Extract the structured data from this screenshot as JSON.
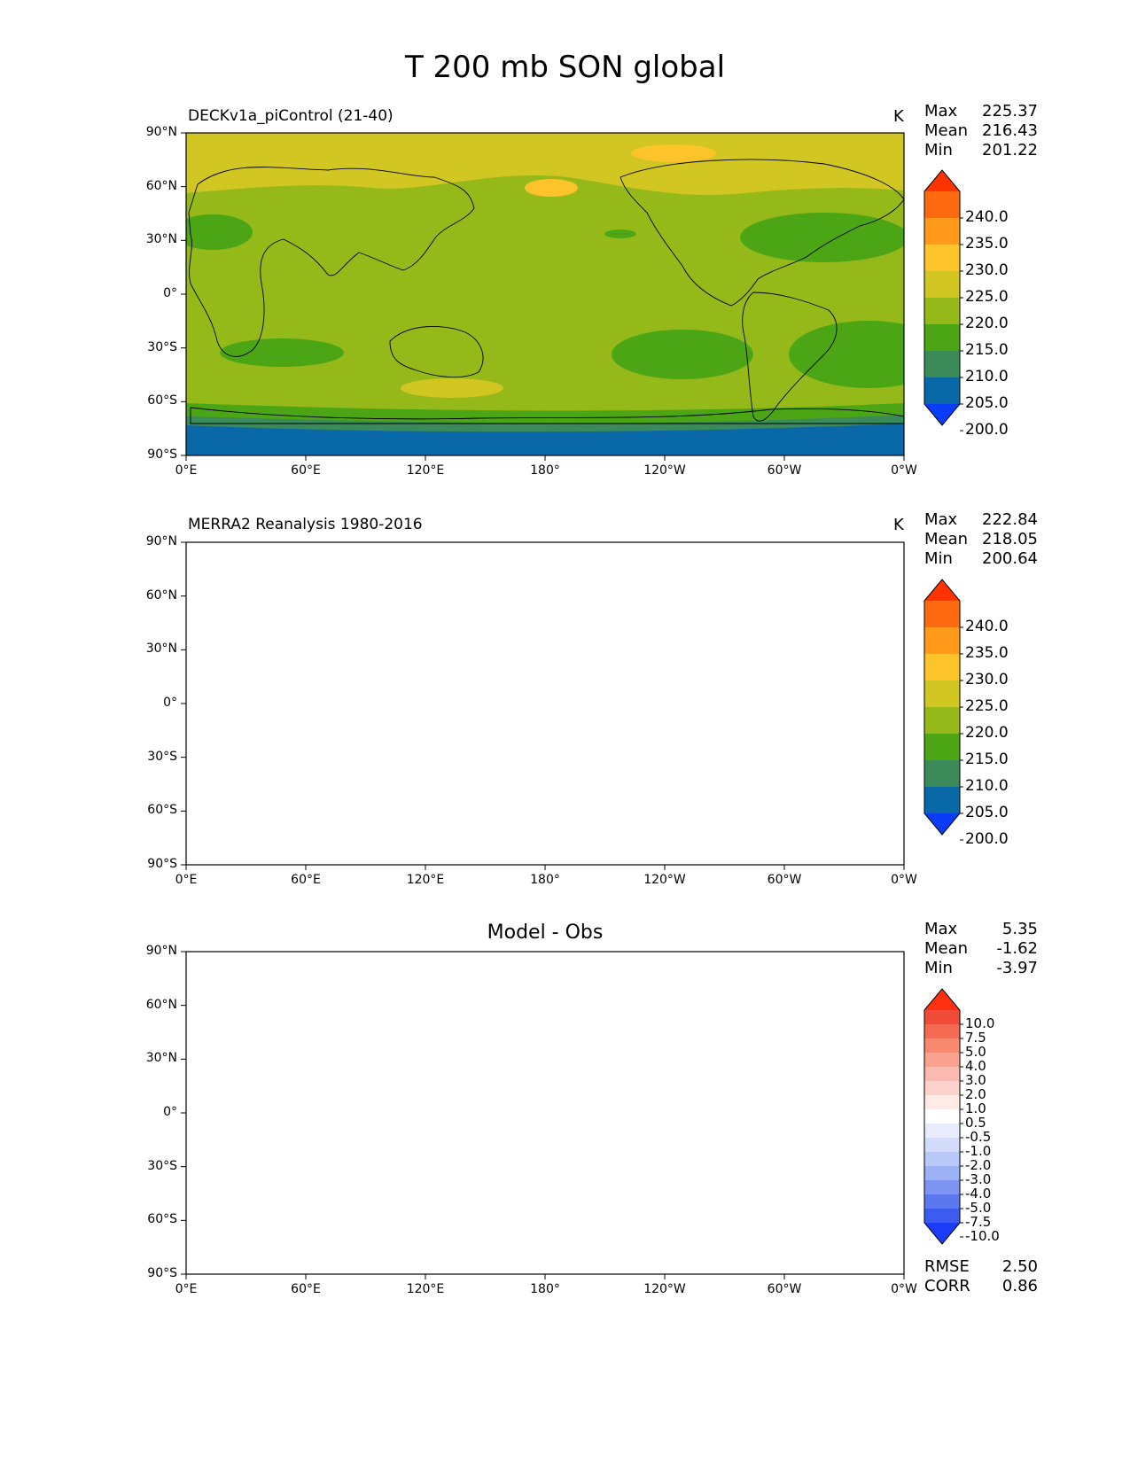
{
  "figure": {
    "title": "T 200 mb SON global",
    "lon_ticks": [
      "0°E",
      "60°E",
      "120°E",
      "180°",
      "120°W",
      "60°W",
      "0°W"
    ],
    "lat_ticks": [
      "90°N",
      "60°N",
      "30°N",
      "0°",
      "30°S",
      "60°S",
      "90°S"
    ]
  },
  "panels": [
    {
      "title": "DECKv1a_piControl (21-40)",
      "units": "K",
      "stats": [
        {
          "label": "Max",
          "value": "225.37"
        },
        {
          "label": "Mean",
          "value": "216.43"
        },
        {
          "label": "Min",
          "value": "201.22"
        }
      ],
      "colorbar": {
        "labels": [
          "240.0",
          "235.0",
          "230.0",
          "225.0",
          "220.0",
          "215.0",
          "210.0",
          "205.0",
          "200.0"
        ],
        "colors": [
          "#ff3300",
          "#ff6a10",
          "#ff9a1a",
          "#fdc32a",
          "#d2c622",
          "#96b91a",
          "#4ba514",
          "#3a8a5a",
          "#0868a8",
          "#0a3cf8"
        ]
      }
    },
    {
      "title": "MERRA2 Reanalysis 1980-2016",
      "units": "K",
      "stats": [
        {
          "label": "Max",
          "value": "222.84"
        },
        {
          "label": "Mean",
          "value": "218.05"
        },
        {
          "label": "Min",
          "value": "200.64"
        }
      ],
      "colorbar": {
        "labels": [
          "240.0",
          "235.0",
          "230.0",
          "225.0",
          "220.0",
          "215.0",
          "210.0",
          "205.0",
          "200.0"
        ],
        "colors": [
          "#ff3300",
          "#ff6a10",
          "#ff9a1a",
          "#fdc32a",
          "#d2c622",
          "#96b91a",
          "#4ba514",
          "#3a8a5a",
          "#0868a8",
          "#0a3cf8"
        ]
      }
    },
    {
      "title": "Model - Obs",
      "units": "",
      "stats": [
        {
          "label": "Max",
          "value": "5.35"
        },
        {
          "label": "Mean",
          "value": "-1.62"
        },
        {
          "label": "Min",
          "value": "-3.97"
        }
      ],
      "extra_stats": [
        {
          "label": "RMSE",
          "value": "2.50"
        },
        {
          "label": "CORR",
          "value": "0.86"
        }
      ],
      "colorbar": {
        "labels": [
          "10.0",
          "7.5",
          "5.0",
          "4.0",
          "3.0",
          "2.0",
          "1.0",
          "0.5",
          "-0.5",
          "-1.0",
          "-2.0",
          "-3.0",
          "-4.0",
          "-5.0",
          "-7.5",
          "-10.0"
        ],
        "colors": [
          "#ff3010",
          "#f04a38",
          "#f46a52",
          "#f78a6e",
          "#f9a290",
          "#fbbab0",
          "#fdd2cc",
          "#ffeae6",
          "#ffffff",
          "#e8ecfc",
          "#d2dcfa",
          "#b8c8f8",
          "#9cb0f6",
          "#7e94f2",
          "#5c78ee",
          "#3c5cf0",
          "#1a3cf8"
        ]
      }
    }
  ]
}
